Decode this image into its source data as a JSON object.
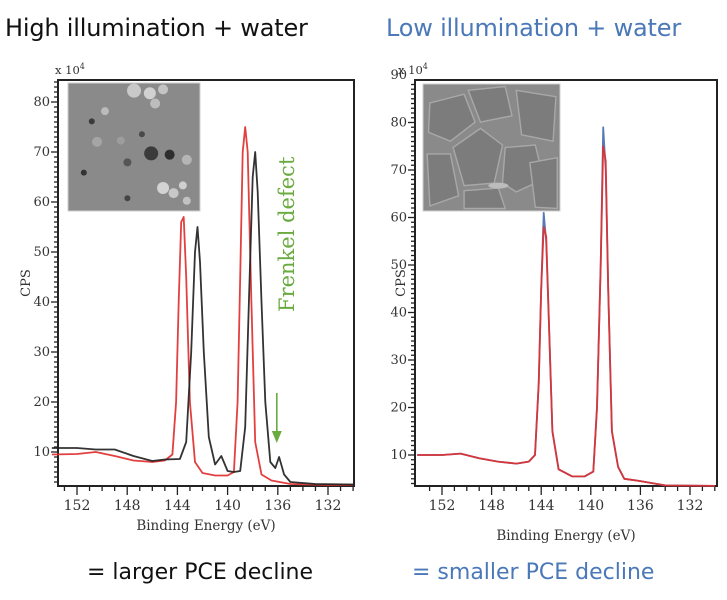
{
  "headings": {
    "left": "High illumination + water",
    "right": "Low illumination + water"
  },
  "footers": {
    "left": "= larger PCE decline",
    "right": "= smaller PCE decline"
  },
  "colors": {
    "left_heading": "#111111",
    "right_heading": "#4a78b8",
    "annotation_green": "#6aaa40",
    "series_red": "#e03030",
    "series_black": "#222222",
    "series_blue": "#4a6fb0"
  },
  "chart_data": [
    {
      "type": "line",
      "title": "High illumination + water",
      "xlabel": "Binding Energy (eV)",
      "ylabel": "CPS",
      "y_multiplier": "x 10^4",
      "xlim": [
        154,
        130
      ],
      "ylim": [
        3,
        86
      ],
      "x_ticks": [
        152,
        148,
        144,
        140,
        136,
        132
      ],
      "y_ticks": [
        10,
        20,
        30,
        40,
        50,
        60,
        70,
        80
      ],
      "annotation": {
        "text": "Frenkel defect",
        "points_to_eV": 136,
        "arrow": "down"
      },
      "inset": "SEM micrograph (degraded surface with particles/pinholes)",
      "series": [
        {
          "name": "red",
          "color": "#e03030",
          "points": [
            [
              154,
              9.5
            ],
            [
              152,
              9.6
            ],
            [
              150.5,
              10
            ],
            [
              149,
              9.2
            ],
            [
              147.5,
              8.3
            ],
            [
              146,
              8.0
            ],
            [
              145,
              8.3
            ],
            [
              144.4,
              9.5
            ],
            [
              144.1,
              20
            ],
            [
              143.9,
              40
            ],
            [
              143.7,
              56
            ],
            [
              143.5,
              57
            ],
            [
              143.3,
              45
            ],
            [
              143,
              20
            ],
            [
              142.6,
              8
            ],
            [
              142,
              5.8
            ],
            [
              141,
              5.3
            ],
            [
              140,
              5.3
            ],
            [
              139.5,
              6
            ],
            [
              139.2,
              20
            ],
            [
              139,
              45
            ],
            [
              138.8,
              70
            ],
            [
              138.6,
              75
            ],
            [
              138.4,
              70
            ],
            [
              138.1,
              40
            ],
            [
              137.8,
              12
            ],
            [
              137.3,
              5.5
            ],
            [
              136.5,
              4.3
            ],
            [
              135,
              3.6
            ],
            [
              132,
              3.4
            ],
            [
              130,
              3.4
            ]
          ]
        },
        {
          "name": "black",
          "color": "#222222",
          "points": [
            [
              154,
              10.8
            ],
            [
              152,
              10.8
            ],
            [
              150.5,
              10.5
            ],
            [
              149,
              10.5
            ],
            [
              147.5,
              9.2
            ],
            [
              146,
              8.2
            ],
            [
              145,
              8.5
            ],
            [
              143.8,
              8.6
            ],
            [
              143.3,
              12
            ],
            [
              142.9,
              30
            ],
            [
              142.6,
              50
            ],
            [
              142.4,
              55
            ],
            [
              142.2,
              48
            ],
            [
              141.9,
              30
            ],
            [
              141.5,
              13
            ],
            [
              141,
              7.5
            ],
            [
              140.5,
              9.2
            ],
            [
              140,
              6.2
            ],
            [
              139.5,
              6
            ],
            [
              139,
              6.2
            ],
            [
              138.6,
              15
            ],
            [
              138.3,
              40
            ],
            [
              138,
              65
            ],
            [
              137.8,
              70
            ],
            [
              137.6,
              62
            ],
            [
              137.3,
              40
            ],
            [
              137,
              20
            ],
            [
              136.6,
              8
            ],
            [
              136.2,
              6.8
            ],
            [
              135.9,
              9
            ],
            [
              135.5,
              5.5
            ],
            [
              135,
              4
            ],
            [
              133,
              3.6
            ],
            [
              130,
              3.5
            ]
          ]
        }
      ]
    },
    {
      "type": "line",
      "title": "Low illumination + water",
      "xlabel": "Binding Energy (eV)",
      "ylabel": "CPS",
      "y_multiplier": "x 10^4",
      "xlim": [
        154,
        130
      ],
      "ylim": [
        3,
        90
      ],
      "x_ticks": [
        152,
        148,
        144,
        140,
        136,
        132
      ],
      "y_ticks": [
        10,
        20,
        30,
        40,
        50,
        60,
        70,
        80,
        90
      ],
      "inset": "SEM micrograph (compact grains)",
      "series": [
        {
          "name": "blue",
          "color": "#4a6fb0",
          "points": [
            [
              154,
              10
            ],
            [
              152,
              10
            ],
            [
              150.5,
              10.3
            ],
            [
              149,
              9.3
            ],
            [
              147.5,
              8.6
            ],
            [
              146,
              8.2
            ],
            [
              145,
              8.6
            ],
            [
              144.5,
              10
            ],
            [
              144.2,
              25
            ],
            [
              144,
              45
            ],
            [
              143.8,
              61
            ],
            [
              143.6,
              55
            ],
            [
              143.4,
              40
            ],
            [
              143.1,
              15
            ],
            [
              142.6,
              7
            ],
            [
              141.5,
              5.5
            ],
            [
              140.5,
              5.5
            ],
            [
              139.8,
              6.5
            ],
            [
              139.5,
              20
            ],
            [
              139.2,
              50
            ],
            [
              139,
              79
            ],
            [
              138.8,
              70
            ],
            [
              138.6,
              45
            ],
            [
              138.3,
              15
            ],
            [
              137.8,
              7.5
            ],
            [
              137.3,
              5
            ],
            [
              136,
              4.5
            ],
            [
              134,
              3.6
            ],
            [
              130,
              3.5
            ]
          ]
        },
        {
          "name": "red",
          "color": "#e03030",
          "points": [
            [
              154,
              10
            ],
            [
              152,
              10
            ],
            [
              150.5,
              10.3
            ],
            [
              149,
              9.3
            ],
            [
              147.5,
              8.6
            ],
            [
              146,
              8.2
            ],
            [
              145,
              8.6
            ],
            [
              144.5,
              10
            ],
            [
              144.2,
              25
            ],
            [
              144,
              45
            ],
            [
              143.8,
              58
            ],
            [
              143.6,
              56
            ],
            [
              143.4,
              40
            ],
            [
              143.1,
              15
            ],
            [
              142.6,
              7
            ],
            [
              141.5,
              5.5
            ],
            [
              140.5,
              5.5
            ],
            [
              139.8,
              6.5
            ],
            [
              139.5,
              20
            ],
            [
              139.2,
              50
            ],
            [
              139,
              75
            ],
            [
              138.8,
              72
            ],
            [
              138.6,
              45
            ],
            [
              138.3,
              15
            ],
            [
              137.8,
              7.5
            ],
            [
              137.3,
              5
            ],
            [
              136,
              4.5
            ],
            [
              134,
              3.6
            ],
            [
              130,
              3.5
            ]
          ]
        }
      ]
    }
  ]
}
